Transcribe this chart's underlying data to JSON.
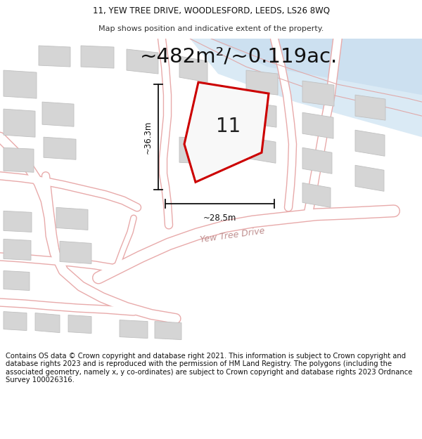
{
  "title_line1": "11, YEW TREE DRIVE, WOODLESFORD, LEEDS, LS26 8WQ",
  "title_line2": "Map shows position and indicative extent of the property.",
  "area_label": "~482m²/~0.119ac.",
  "plot_number": "11",
  "dim_vertical": "~36.3m",
  "dim_horizontal": "~28.5m",
  "street_label": "Yew Tree Drive",
  "footer_text": "Contains OS data © Crown copyright and database right 2021. This information is subject to Crown copyright and database rights 2023 and is reproduced with the permission of HM Land Registry. The polygons (including the associated geometry, namely x, y co-ordinates) are subject to Crown copyright and database rights 2023 Ordnance Survey 100026316.",
  "bg_color": "#ffffff",
  "map_bg": "#fafafa",
  "road_line_color": "#e8aaaa",
  "plot_color": "#cc0000",
  "plot_fill": "#f5f5f5",
  "building_fill": "#d8d8d8",
  "building_edge": "#cccccc",
  "water_color": "#c8dff0",
  "text_color": "#111111",
  "footer_fontsize": 7.2,
  "title_fontsize": 8.5,
  "subtitle_fontsize": 8.0,
  "area_fontsize": 21,
  "plot_label_fontsize": 20,
  "dim_fontsize": 8.5,
  "street_fontsize": 9.0
}
